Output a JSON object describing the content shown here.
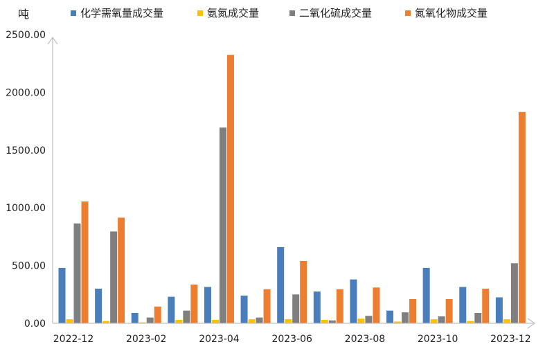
{
  "chart_data": {
    "type": "bar",
    "unit_label": "吨",
    "categories": [
      "2022-12",
      "2023-01",
      "2023-02",
      "2023-03",
      "2023-04",
      "2023-05",
      "2023-06",
      "2023-07",
      "2023-08",
      "2023-09",
      "2023-10",
      "2023-11",
      "2023-12"
    ],
    "x_tick_labels": [
      "2022-12",
      "2023-02",
      "2023-04",
      "2023-06",
      "2023-08",
      "2023-10",
      "2023-12"
    ],
    "y_tick_labels": [
      "0.00",
      "500.00",
      "1000.00",
      "1500.00",
      "2000.00",
      "2500.00"
    ],
    "ylim": [
      0,
      2500
    ],
    "grid": false,
    "legend_position": "top",
    "series": [
      {
        "name": "化学需氧量成交量",
        "color": "#4A7EBB",
        "values": [
          480,
          300,
          90,
          230,
          315,
          240,
          660,
          275,
          380,
          110,
          480,
          315,
          225
        ]
      },
      {
        "name": "氨氮成交量",
        "color": "#FFC000",
        "values": [
          35,
          20,
          8,
          30,
          30,
          35,
          35,
          30,
          40,
          15,
          35,
          20,
          35
        ]
      },
      {
        "name": "二氧化硫成交量",
        "color": "#7F7F7F",
        "values": [
          865,
          795,
          50,
          110,
          1695,
          50,
          250,
          25,
          65,
          95,
          60,
          90,
          520
        ]
      },
      {
        "name": "氮氧化物成交量",
        "color": "#ED7D31",
        "values": [
          1055,
          915,
          145,
          335,
          2325,
          295,
          540,
          295,
          310,
          210,
          210,
          300,
          1830
        ]
      }
    ]
  }
}
